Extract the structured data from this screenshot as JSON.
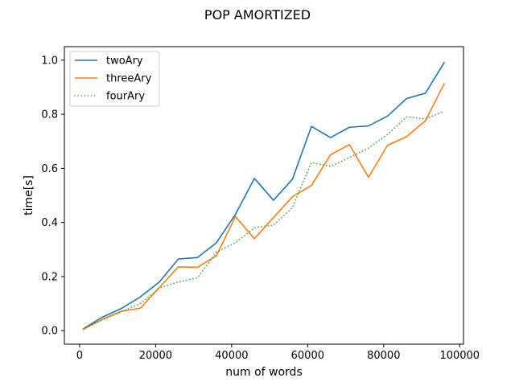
{
  "chart_data": {
    "type": "line",
    "title": "POP AMORTIZED",
    "xlabel": "num of words",
    "ylabel": "time[s]",
    "xlim": [
      -4000,
      101000
    ],
    "ylim": [
      -0.05,
      1.05
    ],
    "xticks": [
      0,
      20000,
      40000,
      60000,
      80000,
      100000
    ],
    "xtick_labels": [
      "0",
      "20000",
      "40000",
      "60000",
      "80000",
      "100000"
    ],
    "yticks": [
      0.0,
      0.2,
      0.4,
      0.6,
      0.8,
      1.0
    ],
    "ytick_labels": [
      "0.0",
      "0.2",
      "0.4",
      "0.6",
      "0.8",
      "1.0"
    ],
    "grid": false,
    "legend_position": "top-left",
    "x": [
      1000,
      6000,
      11000,
      16000,
      21000,
      26000,
      31000,
      36000,
      41000,
      46000,
      51000,
      56000,
      61000,
      66000,
      71000,
      76000,
      81000,
      86000,
      91000,
      96000
    ],
    "series": [
      {
        "name": "twoAry",
        "color": "#1f77b4",
        "style": "solid",
        "values": [
          0.007,
          0.05,
          0.082,
          0.125,
          0.18,
          0.265,
          0.27,
          0.325,
          0.43,
          0.563,
          0.482,
          0.56,
          0.755,
          0.714,
          0.752,
          0.757,
          0.793,
          0.858,
          0.878,
          0.993
        ]
      },
      {
        "name": "threeAry",
        "color": "#ff7f0e",
        "style": "solid",
        "values": [
          0.005,
          0.042,
          0.072,
          0.083,
          0.16,
          0.236,
          0.234,
          0.277,
          0.422,
          0.34,
          0.418,
          0.495,
          0.537,
          0.65,
          0.688,
          0.567,
          0.685,
          0.717,
          0.776,
          0.915
        ]
      },
      {
        "name": "fourAry",
        "color": "#2ca02c",
        "style": "dotted",
        "values": [
          0.005,
          0.04,
          0.07,
          0.1,
          0.158,
          0.18,
          0.195,
          0.29,
          0.325,
          0.38,
          0.39,
          0.455,
          0.622,
          0.607,
          0.64,
          0.675,
          0.725,
          0.79,
          0.783,
          0.812
        ]
      }
    ]
  }
}
